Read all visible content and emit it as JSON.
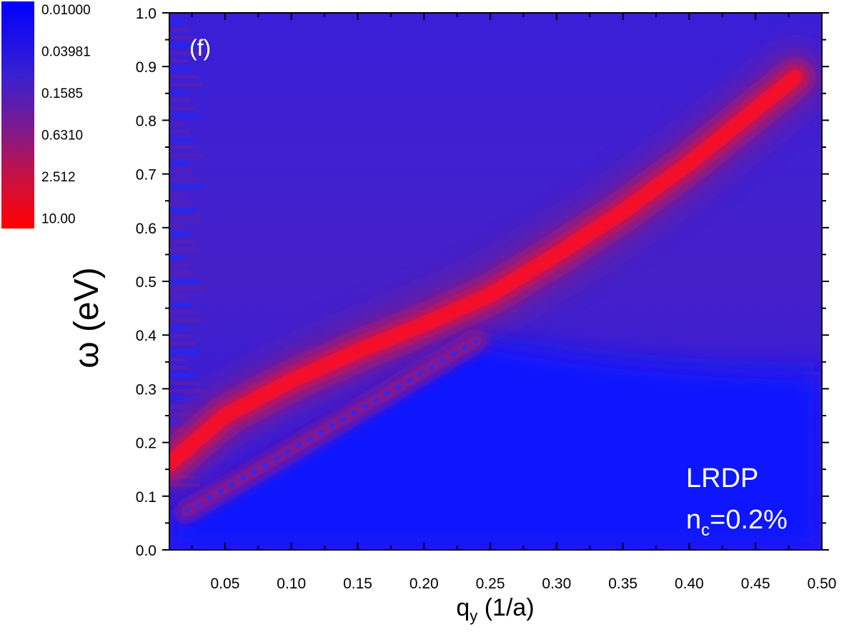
{
  "chart_data": {
    "type": "heatmap",
    "panel_label": "(f)",
    "xlabel": "q",
    "xlabel_sub": "y",
    "xlabel_unit": " (1/a)",
    "ylabel": "ω (eV)",
    "xlim": [
      0.008,
      0.5
    ],
    "ylim": [
      0.0,
      1.0
    ],
    "x_ticks": [
      "0.05",
      "0.10",
      "0.15",
      "0.20",
      "0.25",
      "0.30",
      "0.35",
      "0.40",
      "0.45",
      "0.50"
    ],
    "x_tick_values": [
      0.05,
      0.1,
      0.15,
      0.2,
      0.25,
      0.3,
      0.35,
      0.4,
      0.45,
      0.5
    ],
    "y_ticks": [
      "0.0",
      "0.1",
      "0.2",
      "0.3",
      "0.4",
      "0.5",
      "0.6",
      "0.7",
      "0.8",
      "0.9",
      "1.0"
    ],
    "y_tick_values": [
      0.0,
      0.1,
      0.2,
      0.3,
      0.4,
      0.5,
      0.6,
      0.7,
      0.8,
      0.9,
      1.0
    ],
    "colorbar": {
      "scale": "log",
      "labels": [
        "0.01000",
        "0.03981",
        "0.1585",
        "0.6310",
        "2.512",
        "10.00"
      ],
      "values": [
        0.01,
        0.03981,
        0.1585,
        0.631,
        2.512,
        10.0
      ],
      "color_low": "#1a1aff",
      "color_high": "#ff0000"
    },
    "annotation_lines": [
      "LRDP",
      "n",
      "c",
      "=0.2%"
    ],
    "features": {
      "main_mode": {
        "q": [
          0.008,
          0.05,
          0.1,
          0.15,
          0.2,
          0.25,
          0.3,
          0.35,
          0.4,
          0.48
        ],
        "omega": [
          0.16,
          0.25,
          0.315,
          0.37,
          0.42,
          0.475,
          0.55,
          0.63,
          0.72,
          0.88
        ]
      },
      "lower_branch": {
        "q": [
          0.02,
          0.24
        ],
        "omega": [
          0.07,
          0.39
        ]
      }
    }
  },
  "colors": {
    "blue": "#1a1aff",
    "purple": "#4b1fc8",
    "red": "#ff0000"
  }
}
